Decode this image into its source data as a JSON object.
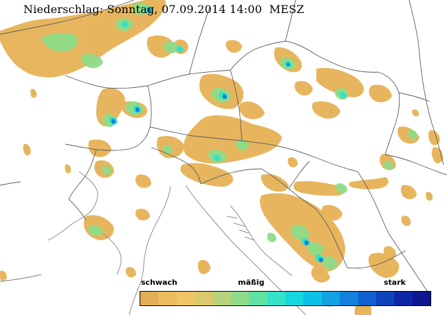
{
  "header": {
    "title": "Niederschlag: Sonntag, 07.09.2014 14:00  MESZ"
  },
  "legend": {
    "labels": {
      "weak": "schwach",
      "moderate": "mäßig",
      "strong": "stark"
    },
    "colors": [
      "#e3ae55",
      "#ebbb5c",
      "#efc665",
      "#dcc96d",
      "#b7d37b",
      "#8fdc88",
      "#5ee3a3",
      "#33e2c8",
      "#16d7dd",
      "#0cc1e6",
      "#11a2e4",
      "#1280dc",
      "#1060cf",
      "#0f43bd",
      "#0d28a7",
      "#0d1790"
    ]
  },
  "map": {
    "colors": {
      "background": "#ffffff",
      "boundaries": "#5a5a5a",
      "coastline": "#8c8c8c",
      "light_precip": "#e6b256",
      "moderate_precip": "#8fdc88",
      "cyan_precip": "#33e2c8",
      "heavy_precip": "#1280dc"
    }
  }
}
